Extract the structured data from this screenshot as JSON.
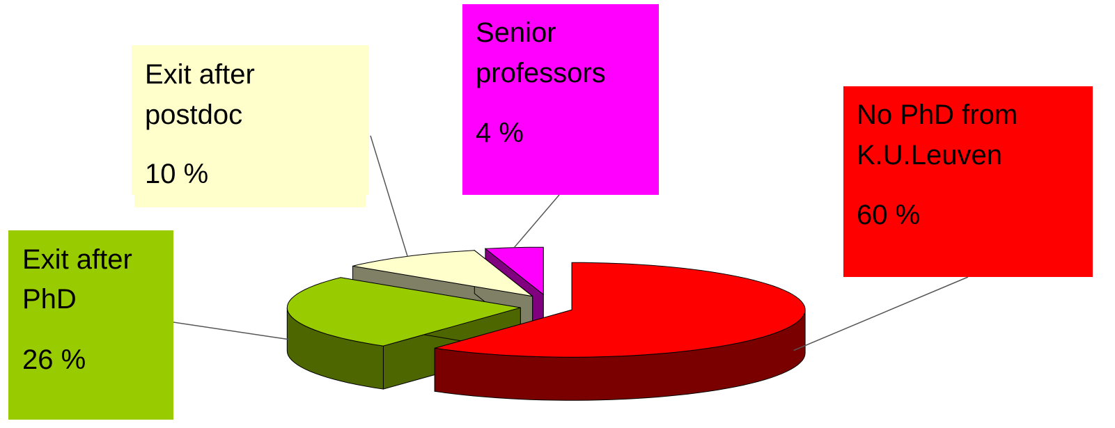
{
  "chart_data": {
    "type": "pie",
    "style": "3d-exploded",
    "title": "",
    "slices": [
      {
        "name_lines": [
          "No PhD from",
          "K.U.Leuven"
        ],
        "value_label": "60 %",
        "value": 60,
        "top_color": "#ff0000",
        "side_color": "#7a0000"
      },
      {
        "name_lines": [
          "Exit after",
          "PhD"
        ],
        "value_label": "26 %",
        "value": 26,
        "top_color": "#99cc00",
        "side_color": "#4d6600"
      },
      {
        "name_lines": [
          "Exit after",
          "postdoc"
        ],
        "value_label": "10 %",
        "value": 10,
        "top_color": "#ffffcc",
        "side_color": "#808066"
      },
      {
        "name_lines": [
          "Senior",
          "professors"
        ],
        "value_label": "4 %",
        "value": 4,
        "top_color": "#ff00ff",
        "side_color": "#800080"
      }
    ]
  }
}
